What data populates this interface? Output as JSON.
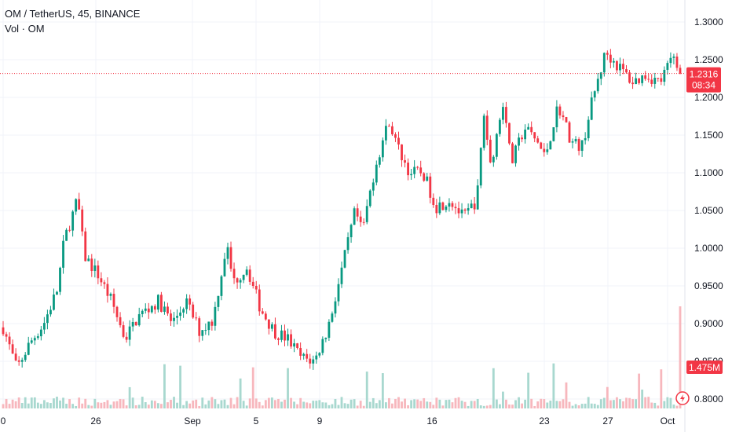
{
  "header": {
    "symbol": "OM / TetherUS",
    "interval": "45",
    "exchange": "BINANCE",
    "volume_legend": "Vol · OM"
  },
  "price_badge": {
    "price": "1.2316",
    "countdown": "08:34",
    "color": "#f23645"
  },
  "volume_badge": {
    "value": "1.475M",
    "color": "#f23645"
  },
  "colors": {
    "up": "#089981",
    "down": "#f23645",
    "vol_up": "#a8d8cf",
    "vol_down": "#f7b7bd",
    "grid": "#f0f3fa",
    "axis_text": "#131722"
  },
  "chart_data": {
    "type": "candlestick",
    "series": [
      {
        "name": "OM / TetherUS"
      },
      {
        "name": "Vol · OM"
      }
    ],
    "y_axis": {
      "min": 0.8,
      "max": 1.3,
      "ticks": [
        "0.8000",
        "0.8500",
        "0.9000",
        "0.9500",
        "1.0000",
        "1.0500",
        "1.1000",
        "1.1500",
        "1.2000",
        "1.2500",
        "1.3000"
      ]
    },
    "x_axis": {
      "ticks": [
        "0",
        "26",
        "Sep",
        "5",
        "9",
        "16",
        "23",
        "27",
        "Oct"
      ]
    },
    "last_price": 1.2316,
    "price_path": [
      {
        "x": 0.0,
        "y": 0.895
      },
      {
        "x": 0.02,
        "y": 0.84
      },
      {
        "x": 0.04,
        "y": 0.875
      },
      {
        "x": 0.06,
        "y": 0.9
      },
      {
        "x": 0.08,
        "y": 0.945
      },
      {
        "x": 0.09,
        "y": 1.01
      },
      {
        "x": 0.11,
        "y": 1.065
      },
      {
        "x": 0.12,
        "y": 0.99
      },
      {
        "x": 0.14,
        "y": 0.965
      },
      {
        "x": 0.16,
        "y": 0.93
      },
      {
        "x": 0.18,
        "y": 0.88
      },
      {
        "x": 0.2,
        "y": 0.91
      },
      {
        "x": 0.23,
        "y": 0.93
      },
      {
        "x": 0.25,
        "y": 0.9
      },
      {
        "x": 0.27,
        "y": 0.93
      },
      {
        "x": 0.29,
        "y": 0.89
      },
      {
        "x": 0.31,
        "y": 0.905
      },
      {
        "x": 0.33,
        "y": 1.005
      },
      {
        "x": 0.34,
        "y": 0.955
      },
      {
        "x": 0.36,
        "y": 0.975
      },
      {
        "x": 0.38,
        "y": 0.92
      },
      {
        "x": 0.4,
        "y": 0.89
      },
      {
        "x": 0.42,
        "y": 0.88
      },
      {
        "x": 0.44,
        "y": 0.855
      },
      {
        "x": 0.46,
        "y": 0.85
      },
      {
        "x": 0.48,
        "y": 0.895
      },
      {
        "x": 0.5,
        "y": 0.97
      },
      {
        "x": 0.52,
        "y": 1.05
      },
      {
        "x": 0.53,
        "y": 1.02
      },
      {
        "x": 0.55,
        "y": 1.11
      },
      {
        "x": 0.57,
        "y": 1.17
      },
      {
        "x": 0.58,
        "y": 1.14
      },
      {
        "x": 0.6,
        "y": 1.1
      },
      {
        "x": 0.62,
        "y": 1.1
      },
      {
        "x": 0.64,
        "y": 1.055
      },
      {
        "x": 0.66,
        "y": 1.065
      },
      {
        "x": 0.68,
        "y": 1.04
      },
      {
        "x": 0.7,
        "y": 1.065
      },
      {
        "x": 0.71,
        "y": 1.18
      },
      {
        "x": 0.72,
        "y": 1.11
      },
      {
        "x": 0.74,
        "y": 1.2
      },
      {
        "x": 0.75,
        "y": 1.11
      },
      {
        "x": 0.77,
        "y": 1.16
      },
      {
        "x": 0.79,
        "y": 1.14
      },
      {
        "x": 0.8,
        "y": 1.12
      },
      {
        "x": 0.82,
        "y": 1.19
      },
      {
        "x": 0.84,
        "y": 1.14
      },
      {
        "x": 0.855,
        "y": 1.135
      },
      {
        "x": 0.87,
        "y": 1.195
      },
      {
        "x": 0.89,
        "y": 1.26
      },
      {
        "x": 0.91,
        "y": 1.24
      },
      {
        "x": 0.93,
        "y": 1.22
      },
      {
        "x": 0.95,
        "y": 1.23
      },
      {
        "x": 0.97,
        "y": 1.22
      },
      {
        "x": 0.99,
        "y": 1.255
      },
      {
        "x": 1.0,
        "y": 1.2316
      }
    ]
  }
}
